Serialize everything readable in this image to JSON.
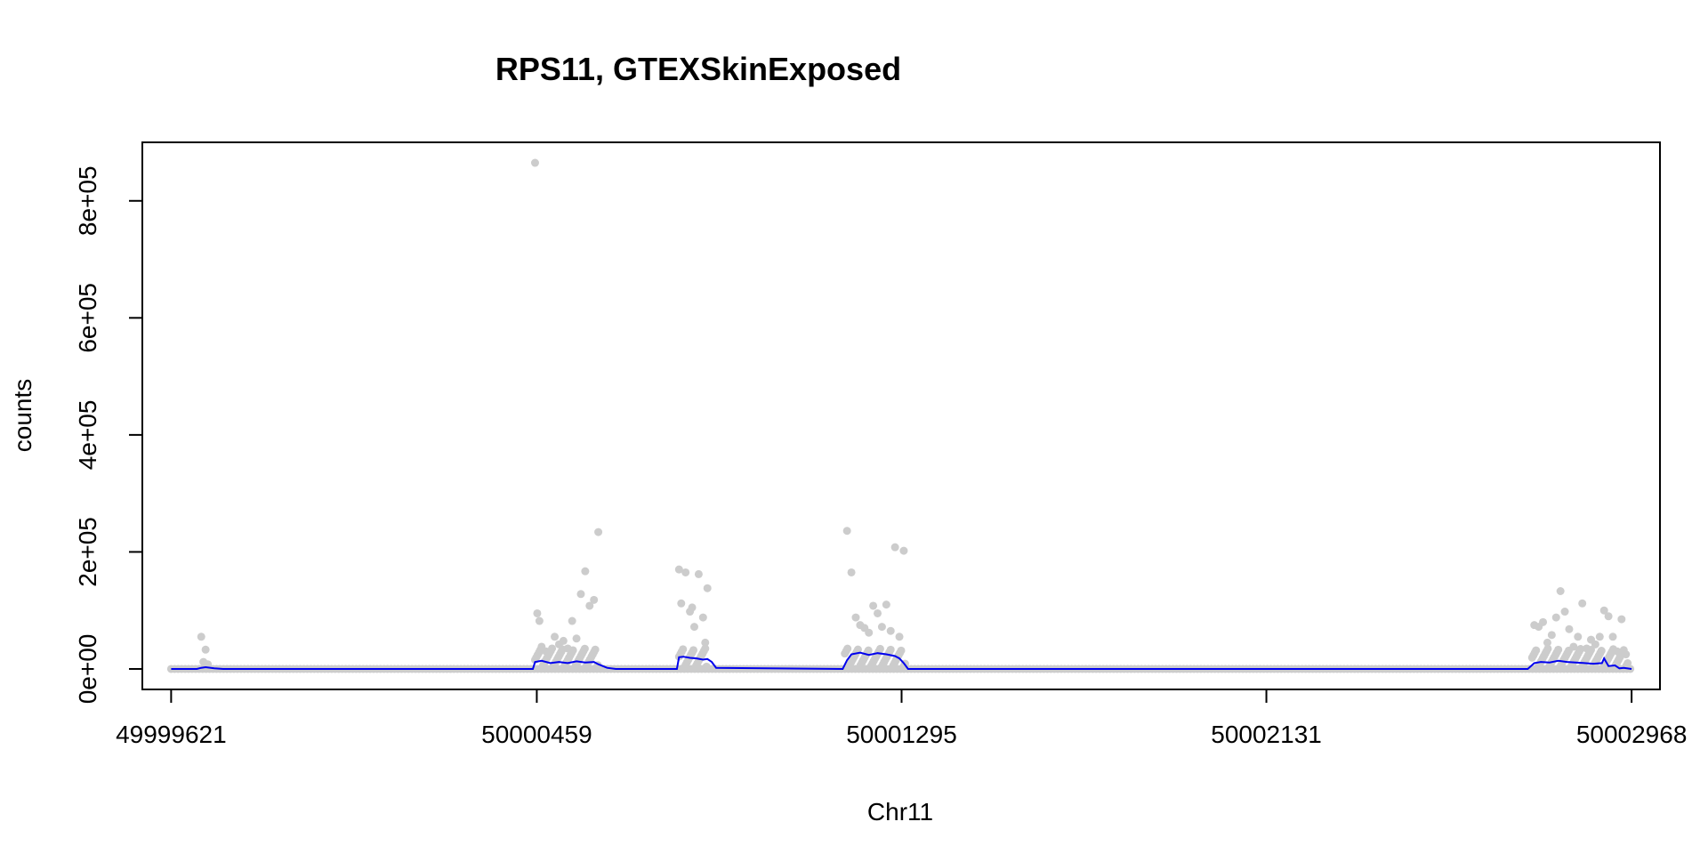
{
  "chart_data": {
    "type": "scatter",
    "title": "RPS11, GTEXSkinExposed",
    "xlabel": "Chr11",
    "ylabel": "counts",
    "xlim": [
      49999555,
      50003033
    ],
    "ylim": [
      -35000,
      900000
    ],
    "x_ticks": [
      49999621,
      50000459,
      50001295,
      50002131,
      50002968
    ],
    "x_tick_labels": [
      "49999621",
      "50000459",
      "50001295",
      "50002131",
      "50002968"
    ],
    "y_ticks": [
      0,
      200000,
      400000,
      600000,
      800000
    ],
    "y_tick_labels": [
      "0e+00",
      "2e+05",
      "4e+05",
      "6e+05",
      "8e+05"
    ],
    "grid": false,
    "colors": {
      "points": "#cccccc",
      "line": "#0000ee",
      "frame": "#000000"
    },
    "series": [
      {
        "style": "points",
        "x": [
          49999690,
          49999700,
          49999695,
          49999705,
          50000455,
          50000460,
          50000465,
          50000470,
          50000480,
          50000500,
          50000510,
          50000520,
          50000530,
          50000540,
          50000550,
          50000560,
          50000570,
          50000580,
          50000590,
          50000600,
          50000785,
          50000790,
          50000800,
          50000810,
          50000815,
          50000820,
          50000830,
          50000840,
          50000845,
          50000850,
          50001170,
          50001180,
          50001190,
          50001200,
          50001210,
          50001220,
          50001230,
          50001240,
          50001250,
          50001260,
          50001270,
          50001280,
          50001290,
          50001300,
          50002745,
          50002755,
          50002765,
          50002775,
          50002785,
          50002795,
          50002805,
          50002815,
          50002825,
          50002835,
          50002845,
          50002855,
          50002865,
          50002875,
          50002885,
          50002895,
          50002905,
          50002915,
          50002925,
          50002935,
          50002945,
          50002955
        ],
        "y": [
          55000,
          33000,
          12000,
          8000,
          865000,
          95000,
          82000,
          38000,
          30000,
          55000,
          42000,
          48000,
          35000,
          82000,
          52000,
          128000,
          167000,
          108000,
          118000,
          234000,
          170000,
          112000,
          165000,
          98000,
          105000,
          72000,
          162000,
          88000,
          45000,
          138000,
          236000,
          165000,
          88000,
          75000,
          70000,
          62000,
          108000,
          95000,
          72000,
          110000,
          65000,
          208000,
          55000,
          202000,
          75000,
          72000,
          80000,
          45000,
          58000,
          88000,
          133000,
          98000,
          68000,
          38000,
          55000,
          112000,
          35000,
          50000,
          42000,
          55000,
          100000,
          90000,
          55000,
          30000,
          85000,
          25000
        ]
      },
      {
        "style": "line",
        "x": [
          49999621,
          49999680,
          49999690,
          49999700,
          49999720,
          49999740,
          50000450,
          50000455,
          50000470,
          50000490,
          50000510,
          50000530,
          50000550,
          50000570,
          50000590,
          50000600,
          50000620,
          50000640,
          50000780,
          50000785,
          50000795,
          50000810,
          50000825,
          50000840,
          50000850,
          50000860,
          50000870,
          50001160,
          50001170,
          50001180,
          50001200,
          50001220,
          50001240,
          50001260,
          50001280,
          50001290,
          50001300,
          50001310,
          50002730,
          50002745,
          50002760,
          50002780,
          50002800,
          50002820,
          50002840,
          50002860,
          50002880,
          50002900,
          50002905,
          50002915,
          50002930,
          50002940,
          50002950,
          50002968
        ],
        "y": [
          0,
          0,
          2000,
          3000,
          1000,
          0,
          0,
          12000,
          14000,
          10000,
          12000,
          10000,
          13000,
          11000,
          12000,
          8000,
          2000,
          0,
          0,
          20000,
          21000,
          19000,
          18000,
          16000,
          17000,
          12000,
          2000,
          0,
          15000,
          25000,
          28000,
          24000,
          27000,
          25000,
          22000,
          18000,
          10000,
          0,
          0,
          10000,
          12000,
          11000,
          14000,
          12000,
          11000,
          10000,
          9000,
          10000,
          18000,
          5000,
          6000,
          1000,
          2000,
          0
        ]
      }
    ]
  }
}
